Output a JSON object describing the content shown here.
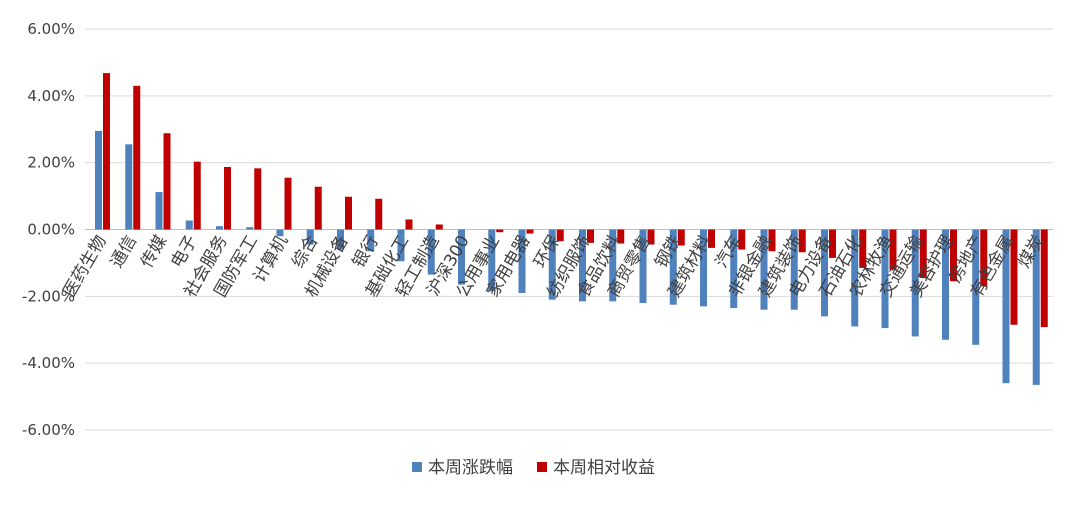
{
  "chart_data": {
    "type": "bar",
    "title": "",
    "xlabel": "",
    "ylabel": "",
    "ylim": [
      -0.06,
      0.06
    ],
    "yticks": [
      0.06,
      0.04,
      0.02,
      0.0,
      -0.02,
      -0.04,
      -0.06
    ],
    "ytick_labels": [
      "6.00%",
      "4.00%",
      "2.00%",
      "0.00%",
      "-2.00%",
      "-4.00%",
      "-6.00%"
    ],
    "grid": true,
    "legend_position": "bottom",
    "categories": [
      "医药生物",
      "通信",
      "传媒",
      "电子",
      "社会服务",
      "国防军工",
      "计算机",
      "综合",
      "机械设备",
      "银行",
      "基础化工",
      "轻工制造",
      "沪深300",
      "公用事业",
      "家用电器",
      "环保",
      "纺织服饰",
      "食品饮料",
      "商贸零售",
      "钢铁",
      "建筑材料",
      "汽车",
      "非银金融",
      "建筑装饰",
      "电力设备",
      "石油石化",
      "农林牧渔",
      "交通运输",
      "美容护理",
      "房地产",
      "有色金属",
      "煤炭"
    ],
    "series": [
      {
        "name": "本周涨跌幅",
        "color": "#4f81bd",
        "values": [
          0.0295,
          0.0255,
          0.0112,
          0.0027,
          0.001,
          0.0007,
          -0.002,
          -0.0045,
          -0.006,
          -0.0065,
          -0.0095,
          -0.0135,
          -0.0165,
          -0.0185,
          -0.019,
          -0.021,
          -0.0215,
          -0.0215,
          -0.022,
          -0.0225,
          -0.023,
          -0.0235,
          -0.024,
          -0.024,
          -0.026,
          -0.029,
          -0.0295,
          -0.032,
          -0.033,
          -0.0345,
          -0.046,
          -0.0465
        ]
      },
      {
        "name": "本周相对收益",
        "color": "#c00000",
        "values": [
          0.0468,
          0.043,
          0.0288,
          0.0203,
          0.0187,
          0.0183,
          0.0155,
          0.0128,
          0.0098,
          0.0092,
          0.003,
          0.0015,
          0.0,
          -0.0008,
          -0.0012,
          -0.0035,
          -0.004,
          -0.0042,
          -0.0045,
          -0.0048,
          -0.0055,
          -0.006,
          -0.0065,
          -0.0068,
          -0.0085,
          -0.0115,
          -0.012,
          -0.0145,
          -0.0155,
          -0.017,
          -0.0285,
          -0.0292
        ]
      }
    ]
  }
}
